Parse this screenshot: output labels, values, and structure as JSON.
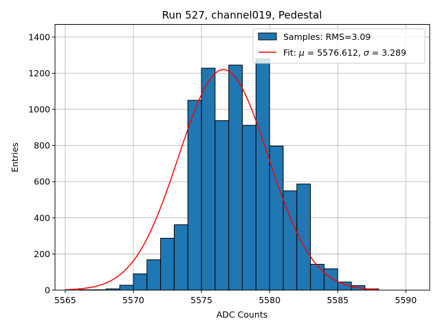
{
  "chart_data": {
    "type": "bar",
    "title": "Run 527, channel019, Pedestal",
    "xlabel": "ADC Counts",
    "ylabel": "Entries",
    "xlim": [
      5564.25,
      5591.75
    ],
    "ylim": [
      0,
      1470
    ],
    "xticks": [
      5565,
      5570,
      5575,
      5580,
      5585,
      5590
    ],
    "yticks": [
      0,
      200,
      400,
      600,
      800,
      1000,
      1200,
      1400
    ],
    "grid": true,
    "legend_position": "top-right",
    "histogram": {
      "name": "Samples: RMS=3.09",
      "color": "#1f77b4",
      "bin_edges": [
        5566,
        5567,
        5568,
        5569,
        5570,
        5571,
        5572,
        5573,
        5574,
        5575,
        5576,
        5577,
        5578,
        5579,
        5580,
        5581,
        5582,
        5583,
        5584,
        5585,
        5586,
        5587,
        5588
      ],
      "values": [
        2,
        2,
        7,
        27,
        90,
        168,
        287,
        362,
        1050,
        1228,
        938,
        1245,
        912,
        1278,
        797,
        549,
        587,
        143,
        118,
        45,
        25,
        7
      ]
    },
    "fit": {
      "name": "Fit: μ = 5576.612, σ = 3.289",
      "color": "#ff0000",
      "mu": 5576.612,
      "sigma": 3.289,
      "amplitude": 1220,
      "x_range": [
        5565,
        5588
      ]
    }
  },
  "legend": {
    "hist_label": "Samples: RMS=3.09",
    "fit_label_prefix": "Fit: ",
    "fit_label_mu": "μ",
    "fit_label_mid": " = 5576.612, ",
    "fit_label_sigma": "σ",
    "fit_label_suffix": " = 3.289"
  }
}
